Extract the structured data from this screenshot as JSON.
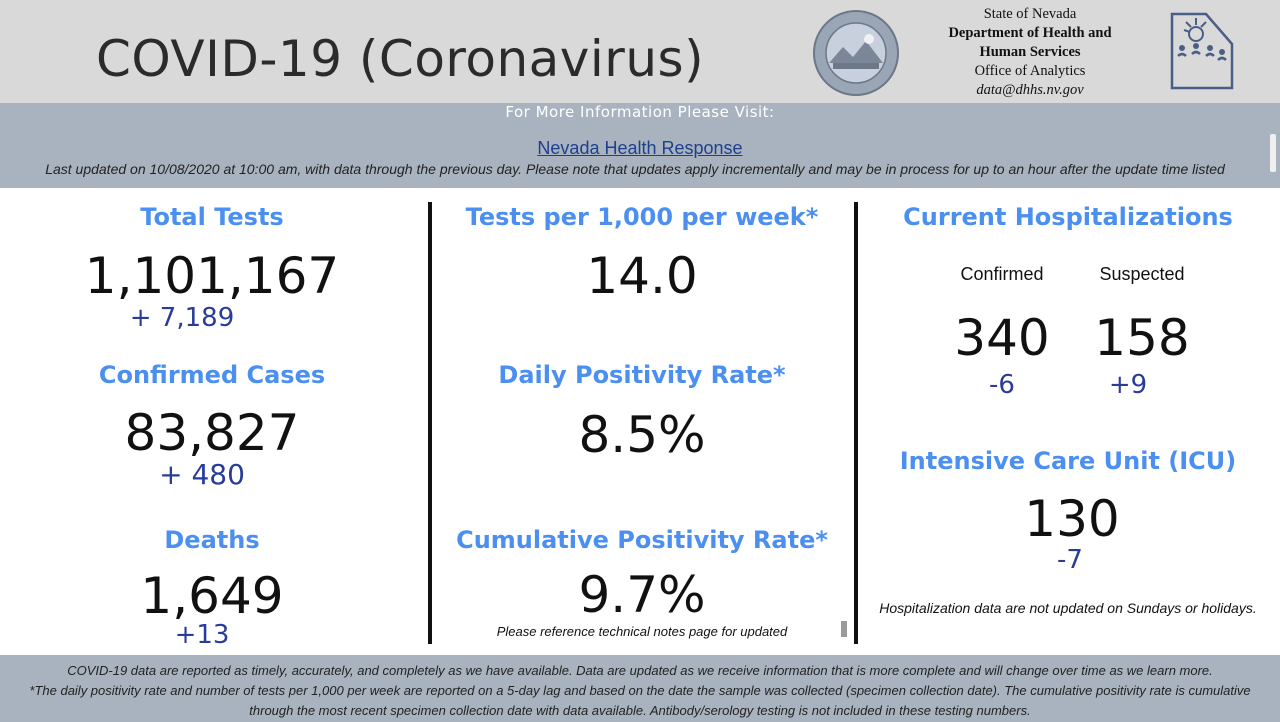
{
  "header": {
    "title": "COVID-19 (Coronavirus)",
    "agency_lines": [
      "State of Nevada",
      "Department of Health and",
      "Human Services",
      "Office of Analytics",
      "data@dhhs.nv.gov"
    ],
    "seal_text": "THE GREAT SEAL OF THE STATE OF NEVADA",
    "logo_text": "DHHS"
  },
  "info": {
    "visit": "For More Information Please Visit:",
    "link": "Nevada Health Response",
    "updated": "Last updated on 10/08/2020 at 10:00 am, with data through the previous day.  Please note that updates apply incrementally and may be in process for up to an hour after the update time listed"
  },
  "left": {
    "total_tests_label": "Total Tests",
    "total_tests_value": "1,101,167",
    "total_tests_delta": "+ 7,189",
    "cases_label": "Confirmed Cases",
    "cases_value": "83,827",
    "cases_delta": "+ 480",
    "deaths_label": "Deaths",
    "deaths_value": "1,649",
    "deaths_delta": "+13"
  },
  "middle": {
    "tests_per_label": "Tests per 1,000 per week*",
    "tests_per_value": "14.0",
    "daily_pos_label": "Daily Positivity Rate*",
    "daily_pos_value": "8.5%",
    "cum_pos_label": "Cumulative Positivity Rate*",
    "cum_pos_value": "9.7%",
    "note": "Please reference technical notes page for updated"
  },
  "right": {
    "hosp_label": "Current Hospitalizations",
    "confirmed_label": "Confirmed",
    "suspected_label": "Suspected",
    "confirmed_value": "340",
    "suspected_value": "158",
    "confirmed_delta": "-6",
    "suspected_delta": "+9",
    "icu_label": "Intensive Care Unit (ICU)",
    "icu_value": "130",
    "icu_delta": "-7",
    "note": "Hospitalization data are not updated on Sundays or holidays."
  },
  "footer": {
    "line1": "COVID-19 data are reported as timely, accurately, and completely as we have available.  Data are updated as we receive information that is more complete and will change over time as we learn more.",
    "line2": "*The daily positivity rate and number of tests per 1,000 per week are reported on a 5-day lag and based on the date the sample was collected (specimen collection date).  The cumulative positivity rate is cumulative through the most recent specimen collection date with data available.  Antibody/serology testing is not included in these testing numbers."
  },
  "colors": {
    "accent_label": "#4b8ff0",
    "delta": "#2a3c9a",
    "band": "#a9b3bf",
    "header_bg": "#d9d9d9"
  }
}
